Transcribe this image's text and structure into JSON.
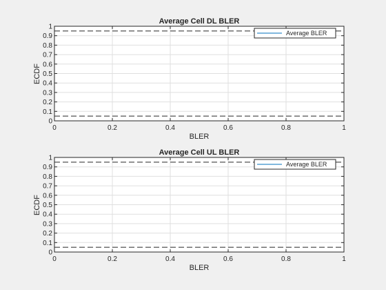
{
  "chart_data": [
    {
      "type": "line",
      "title": "Average Cell DL BLER",
      "xlabel": "BLER",
      "ylabel": "ECDF",
      "xlim": [
        0,
        1
      ],
      "ylim": [
        0,
        1
      ],
      "xticks": [
        "0",
        "0.2",
        "0.4",
        "0.6",
        "0.8",
        "1"
      ],
      "yticks": [
        "0",
        "0.1",
        "0.2",
        "0.3",
        "0.4",
        "0.5",
        "0.6",
        "0.7",
        "0.8",
        "0.9",
        "1"
      ],
      "grid": true,
      "legend_position": "top-right",
      "series": [
        {
          "name": "Average BLER",
          "color": "#0072bd",
          "x": [
            0,
            0
          ],
          "y": [
            0,
            1
          ]
        }
      ],
      "reference_lines": [
        {
          "y": 0.05,
          "style": "dashed",
          "color": "#262626"
        },
        {
          "y": 0.95,
          "style": "dashed",
          "color": "#262626"
        }
      ]
    },
    {
      "type": "line",
      "title": "Average Cell UL BLER",
      "xlabel": "BLER",
      "ylabel": "ECDF",
      "xlim": [
        0,
        1
      ],
      "ylim": [
        0,
        1
      ],
      "xticks": [
        "0",
        "0.2",
        "0.4",
        "0.6",
        "0.8",
        "1"
      ],
      "yticks": [
        "0",
        "0.1",
        "0.2",
        "0.3",
        "0.4",
        "0.5",
        "0.6",
        "0.7",
        "0.8",
        "0.9",
        "1"
      ],
      "grid": true,
      "legend_position": "top-right",
      "series": [
        {
          "name": "Average BLER",
          "color": "#0072bd",
          "x": [
            0,
            0
          ],
          "y": [
            0,
            1
          ]
        }
      ],
      "reference_lines": [
        {
          "y": 0.05,
          "style": "dashed",
          "color": "#262626"
        },
        {
          "y": 0.95,
          "style": "dashed",
          "color": "#262626"
        }
      ]
    }
  ]
}
